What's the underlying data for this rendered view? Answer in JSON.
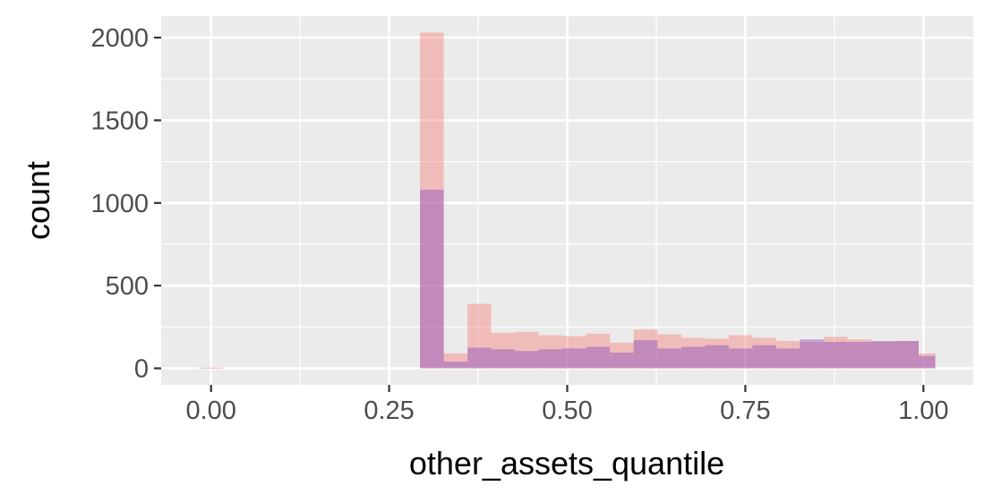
{
  "chart_data": {
    "type": "histogram",
    "title": "",
    "xlabel": "other_assets_quantile",
    "ylabel": "count",
    "xlim": [
      -0.07,
      1.07
    ],
    "ylim": [
      -100,
      2130
    ],
    "x_ticks": [
      0.0,
      0.25,
      0.5,
      0.75,
      1.0
    ],
    "x_tick_labels": [
      "0.00",
      "0.25",
      "0.50",
      "0.75",
      "1.00"
    ],
    "y_ticks": [
      0,
      500,
      1000,
      1500,
      2000
    ],
    "y_tick_labels": [
      "0",
      "500",
      "1000",
      "1500",
      "2000"
    ],
    "grid": true,
    "legend": "none",
    "background": "#ebebeb",
    "grid_color": "#ffffff",
    "bin_width": 0.0333,
    "overlap_color": "#bf9ac9",
    "series": [
      {
        "color": "#f8766d",
        "opacity": 0.4,
        "bins": [
          {
            "x0": -0.0167,
            "x1": 0.0167,
            "count": 5
          },
          {
            "x0": 0.2933,
            "x1": 0.3267,
            "count": 2030
          },
          {
            "x0": 0.3267,
            "x1": 0.36,
            "count": 90
          },
          {
            "x0": 0.36,
            "x1": 0.3933,
            "count": 390
          },
          {
            "x0": 0.3933,
            "x1": 0.4267,
            "count": 215
          },
          {
            "x0": 0.4267,
            "x1": 0.46,
            "count": 220
          },
          {
            "x0": 0.46,
            "x1": 0.4933,
            "count": 200
          },
          {
            "x0": 0.4933,
            "x1": 0.5267,
            "count": 195
          },
          {
            "x0": 0.5267,
            "x1": 0.56,
            "count": 210
          },
          {
            "x0": 0.56,
            "x1": 0.5933,
            "count": 155
          },
          {
            "x0": 0.5933,
            "x1": 0.6267,
            "count": 235
          },
          {
            "x0": 0.6267,
            "x1": 0.66,
            "count": 205
          },
          {
            "x0": 0.66,
            "x1": 0.6933,
            "count": 185
          },
          {
            "x0": 0.6933,
            "x1": 0.7267,
            "count": 180
          },
          {
            "x0": 0.7267,
            "x1": 0.76,
            "count": 200
          },
          {
            "x0": 0.76,
            "x1": 0.7933,
            "count": 185
          },
          {
            "x0": 0.7933,
            "x1": 0.8267,
            "count": 165
          },
          {
            "x0": 0.8267,
            "x1": 0.86,
            "count": 160
          },
          {
            "x0": 0.86,
            "x1": 0.8933,
            "count": 190
          },
          {
            "x0": 0.8933,
            "x1": 0.9267,
            "count": 175
          },
          {
            "x0": 0.9267,
            "x1": 0.96,
            "count": 160
          },
          {
            "x0": 0.96,
            "x1": 0.9933,
            "count": 165
          },
          {
            "x0": 0.9933,
            "x1": 1.0167,
            "count": 90
          }
        ]
      },
      {
        "color": "#7e3fbf",
        "opacity": 0.4,
        "bins": [
          {
            "x0": -0.0167,
            "x1": 0.0167,
            "count": 3
          },
          {
            "x0": 0.2933,
            "x1": 0.3267,
            "count": 1080
          },
          {
            "x0": 0.3267,
            "x1": 0.36,
            "count": 40
          },
          {
            "x0": 0.36,
            "x1": 0.3933,
            "count": 125
          },
          {
            "x0": 0.3933,
            "x1": 0.4267,
            "count": 115
          },
          {
            "x0": 0.4267,
            "x1": 0.46,
            "count": 105
          },
          {
            "x0": 0.46,
            "x1": 0.4933,
            "count": 115
          },
          {
            "x0": 0.4933,
            "x1": 0.5267,
            "count": 120
          },
          {
            "x0": 0.5267,
            "x1": 0.56,
            "count": 130
          },
          {
            "x0": 0.56,
            "x1": 0.5933,
            "count": 95
          },
          {
            "x0": 0.5933,
            "x1": 0.6267,
            "count": 170
          },
          {
            "x0": 0.6267,
            "x1": 0.66,
            "count": 120
          },
          {
            "x0": 0.66,
            "x1": 0.6933,
            "count": 130
          },
          {
            "x0": 0.6933,
            "x1": 0.7267,
            "count": 140
          },
          {
            "x0": 0.7267,
            "x1": 0.76,
            "count": 120
          },
          {
            "x0": 0.76,
            "x1": 0.7933,
            "count": 140
          },
          {
            "x0": 0.7933,
            "x1": 0.8267,
            "count": 120
          },
          {
            "x0": 0.8267,
            "x1": 0.86,
            "count": 175
          },
          {
            "x0": 0.86,
            "x1": 0.8933,
            "count": 160
          },
          {
            "x0": 0.8933,
            "x1": 0.9267,
            "count": 160
          },
          {
            "x0": 0.9267,
            "x1": 0.96,
            "count": 165
          },
          {
            "x0": 0.96,
            "x1": 0.9933,
            "count": 165
          },
          {
            "x0": 0.9933,
            "x1": 1.0167,
            "count": 75
          }
        ]
      }
    ]
  }
}
